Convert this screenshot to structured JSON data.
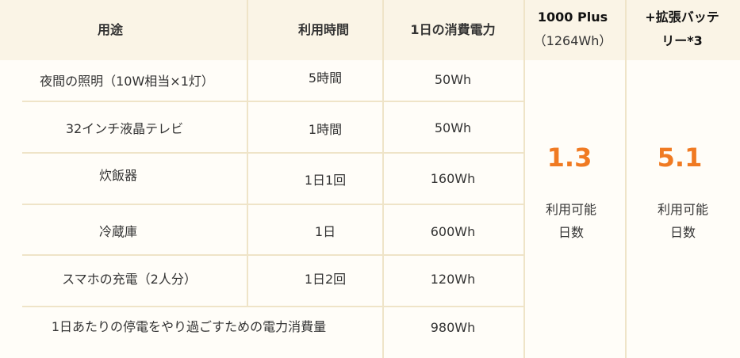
{
  "headers": {
    "usage": "用途",
    "time": "利用時間",
    "daily": "1日の消費電力",
    "plus_title": "1000 Plus",
    "plus_sub": "（1264Wh）",
    "ext_line1": "+拡張バッテ",
    "ext_line2": "リー*3"
  },
  "rows": [
    {
      "usage": "夜間の照明（10W相当×1灯）",
      "time": "5時間",
      "power": "50Wh"
    },
    {
      "usage": "32インチ液晶テレビ",
      "time": "1時間",
      "power": "50Wh"
    },
    {
      "usage": "炊飯器",
      "time": "1日1回",
      "power": "160Wh"
    },
    {
      "usage": "冷蔵庫",
      "time": "1日",
      "power": "600Wh"
    },
    {
      "usage": "スマホの充電（2人分）",
      "time": "1日2回",
      "power": "120Wh"
    }
  ],
  "total": {
    "label": "1日あたりの停電をやり過ごすための電力消費量",
    "power": "980Wh"
  },
  "results": {
    "plus_days": "1.3",
    "ext_days": "5.1",
    "label_line1": "利用可能",
    "label_line2": "日数"
  },
  "colors": {
    "accent": "#f07a22",
    "header_bg": "#faf4e6",
    "border": "#efe4c8"
  }
}
